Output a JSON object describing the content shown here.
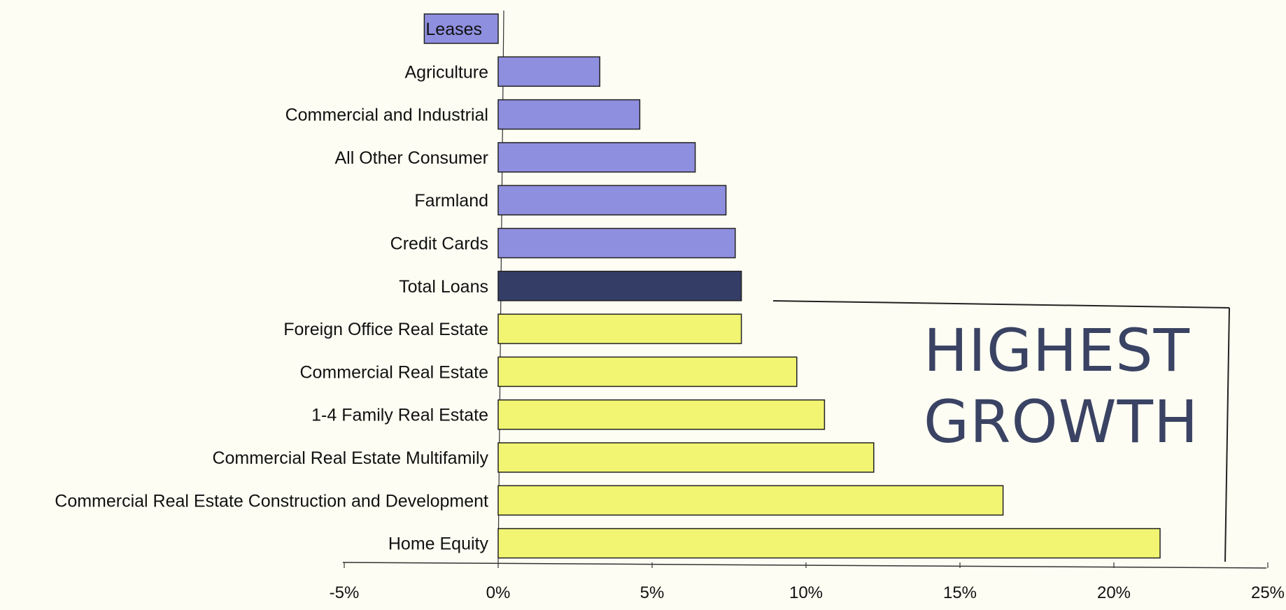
{
  "chart_data": {
    "type": "bar",
    "orientation": "horizontal",
    "title": "",
    "xlabel": "",
    "ylabel": "",
    "categories": [
      "Leases",
      "Agriculture",
      "Commercial and Industrial",
      "All Other Consumer",
      "Farmland",
      "Credit Cards",
      "Total Loans",
      "Foreign Office Real Estate",
      "Commercial Real Estate",
      "1-4 Family Real Estate",
      "Commercial Real Estate Multifamily",
      "Commercial Real Estate Construction and Development",
      "Home Equity"
    ],
    "values": [
      -2.4,
      3.3,
      4.6,
      6.4,
      7.4,
      7.7,
      7.9,
      7.9,
      9.7,
      10.6,
      12.2,
      16.4,
      21.5
    ],
    "bar_groups": [
      "below",
      "below",
      "below",
      "below",
      "below",
      "below",
      "total",
      "above",
      "above",
      "above",
      "above",
      "above",
      "above"
    ],
    "group_colors": {
      "below": "#8f8fe0",
      "total": "#333d66",
      "above": "#f1f572"
    },
    "xlim": [
      -5,
      25
    ],
    "xticks": [
      -5,
      0,
      5,
      10,
      15,
      20,
      25
    ],
    "tick_suffix": "%",
    "grid": false,
    "annotation": {
      "lines": [
        "HIGHEST",
        "GROWTH"
      ]
    }
  }
}
